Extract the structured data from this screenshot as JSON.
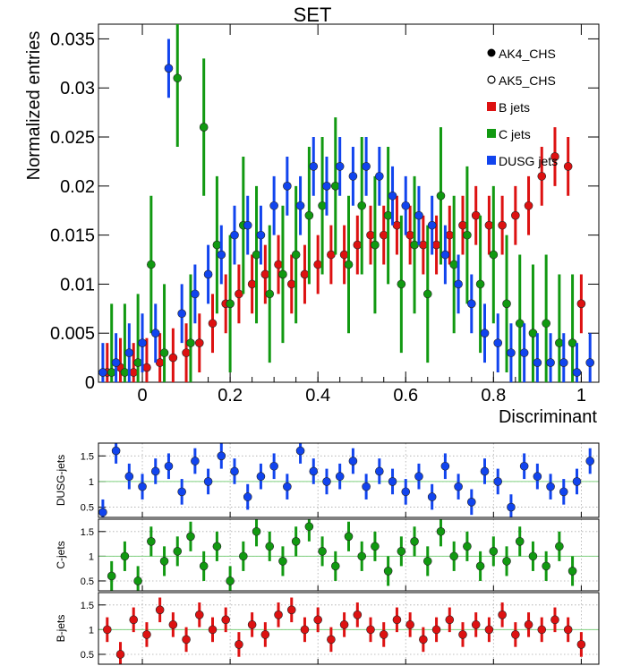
{
  "title": "SET",
  "main_xlabel": "Discriminant",
  "main_ylabel": "Normalized entries",
  "colors": {
    "b": "#dd1111",
    "c": "#119911",
    "dusg": "#1144ee",
    "black": "#000000",
    "ref": "#7fd07f"
  },
  "legend": [
    {
      "label": "AK4_CHS",
      "marker": "filled-circle",
      "color": "#000000"
    },
    {
      "label": "AK5_CHS",
      "marker": "open-circle",
      "color": "#000000"
    },
    {
      "label": "B jets",
      "marker": "square",
      "color": "#dd1111"
    },
    {
      "label": "C jets",
      "marker": "square",
      "color": "#119911"
    },
    {
      "label": "DUSG jets",
      "marker": "square",
      "color": "#1144ee"
    }
  ],
  "chart_data": [
    {
      "type": "scatter",
      "title": "SET",
      "xlabel": "Discriminant",
      "ylabel": "Normalized entries",
      "xlim": [
        -0.1,
        1.04
      ],
      "ylim": [
        0,
        0.0365
      ],
      "xticks": [
        "0",
        "0.2",
        "0.4",
        "0.6",
        "0.8",
        "1"
      ],
      "yticks": [
        "0",
        "0.005",
        "0.01",
        "0.015",
        "0.02",
        "0.025",
        "0.03",
        "0.035"
      ],
      "legend_position": "top-right",
      "series": [
        {
          "name": "B jets",
          "color": "#dd1111",
          "x": [
            -0.08,
            -0.05,
            -0.02,
            0.01,
            0.04,
            0.07,
            0.1,
            0.13,
            0.16,
            0.19,
            0.22,
            0.25,
            0.28,
            0.31,
            0.34,
            0.37,
            0.4,
            0.43,
            0.46,
            0.49,
            0.52,
            0.55,
            0.58,
            0.61,
            0.64,
            0.67,
            0.7,
            0.73,
            0.76,
            0.79,
            0.82,
            0.85,
            0.88,
            0.91,
            0.94,
            0.97,
            1.0
          ],
          "y": [
            0.001,
            0.0015,
            0.001,
            0.0015,
            0.002,
            0.0025,
            0.003,
            0.004,
            0.006,
            0.008,
            0.009,
            0.01,
            0.011,
            0.012,
            0.01,
            0.011,
            0.012,
            0.013,
            0.013,
            0.014,
            0.015,
            0.015,
            0.016,
            0.015,
            0.014,
            0.014,
            0.015,
            0.016,
            0.017,
            0.016,
            0.016,
            0.017,
            0.018,
            0.021,
            0.023,
            0.022,
            0.008
          ],
          "y_err": 0.003
        },
        {
          "name": "C jets",
          "color": "#119911",
          "x": [
            -0.07,
            -0.04,
            -0.01,
            0.02,
            0.05,
            0.08,
            0.11,
            0.14,
            0.17,
            0.2,
            0.23,
            0.26,
            0.29,
            0.32,
            0.35,
            0.38,
            0.41,
            0.44,
            0.47,
            0.5,
            0.53,
            0.56,
            0.59,
            0.62,
            0.65,
            0.68,
            0.71,
            0.74,
            0.77,
            0.8,
            0.83,
            0.86,
            0.89,
            0.92,
            0.95,
            0.98
          ],
          "y": [
            0.001,
            0.001,
            0.002,
            0.012,
            0.003,
            0.031,
            0.004,
            0.026,
            0.014,
            0.008,
            0.016,
            0.013,
            0.009,
            0.011,
            0.013,
            0.017,
            0.018,
            0.02,
            0.012,
            0.018,
            0.014,
            0.017,
            0.01,
            0.014,
            0.009,
            0.019,
            0.012,
            0.015,
            0.01,
            0.013,
            0.008,
            0.006,
            0.005,
            0.006,
            0.004,
            0.004
          ],
          "y_err": 0.007
        },
        {
          "name": "DUSG jets",
          "color": "#1144ee",
          "x": [
            -0.09,
            -0.06,
            -0.03,
            0.0,
            0.03,
            0.06,
            0.09,
            0.12,
            0.15,
            0.18,
            0.21,
            0.24,
            0.27,
            0.3,
            0.33,
            0.36,
            0.39,
            0.42,
            0.45,
            0.48,
            0.51,
            0.54,
            0.57,
            0.6,
            0.63,
            0.66,
            0.69,
            0.72,
            0.75,
            0.78,
            0.81,
            0.84,
            0.87,
            0.9,
            0.93,
            0.96,
            0.99,
            1.02
          ],
          "y": [
            0.001,
            0.002,
            0.003,
            0.004,
            0.005,
            0.032,
            0.007,
            0.009,
            0.011,
            0.013,
            0.015,
            0.016,
            0.015,
            0.018,
            0.02,
            0.018,
            0.022,
            0.02,
            0.022,
            0.021,
            0.022,
            0.021,
            0.019,
            0.018,
            0.017,
            0.016,
            0.013,
            0.01,
            0.008,
            0.005,
            0.004,
            0.003,
            0.003,
            0.002,
            0.002,
            0.002,
            0.001,
            0.002
          ],
          "y_err": 0.003
        }
      ]
    },
    {
      "type": "scatter",
      "ylabel": "DUSG-jets",
      "ylim": [
        0.3,
        1.75
      ],
      "yticks": [
        "0.5",
        "1",
        "1.5"
      ],
      "color": "#1144ee",
      "reference_line": 1,
      "x": [
        -0.09,
        -0.06,
        -0.03,
        0.0,
        0.03,
        0.06,
        0.09,
        0.12,
        0.15,
        0.18,
        0.21,
        0.24,
        0.27,
        0.3,
        0.33,
        0.36,
        0.39,
        0.42,
        0.45,
        0.48,
        0.51,
        0.54,
        0.57,
        0.6,
        0.63,
        0.66,
        0.69,
        0.72,
        0.75,
        0.78,
        0.81,
        0.84,
        0.87,
        0.9,
        0.93,
        0.96,
        0.99,
        1.02
      ],
      "y": [
        0.4,
        1.6,
        1.1,
        0.9,
        1.2,
        1.3,
        0.8,
        1.4,
        1.0,
        1.5,
        1.2,
        0.7,
        1.1,
        1.3,
        0.9,
        1.6,
        1.2,
        1.0,
        1.1,
        1.4,
        0.9,
        1.2,
        1.0,
        0.8,
        1.1,
        0.7,
        1.3,
        0.9,
        0.6,
        1.2,
        1.0,
        0.5,
        1.3,
        1.1,
        0.9,
        0.8,
        1.0,
        1.4
      ],
      "y_err": 0.25
    },
    {
      "type": "scatter",
      "ylabel": "C-jets",
      "ylim": [
        0.3,
        1.75
      ],
      "yticks": [
        "0.5",
        "1",
        "1.5"
      ],
      "color": "#119911",
      "reference_line": 1,
      "x": [
        -0.07,
        -0.04,
        -0.01,
        0.02,
        0.05,
        0.08,
        0.11,
        0.14,
        0.17,
        0.2,
        0.23,
        0.26,
        0.29,
        0.32,
        0.35,
        0.38,
        0.41,
        0.44,
        0.47,
        0.5,
        0.53,
        0.56,
        0.59,
        0.62,
        0.65,
        0.68,
        0.71,
        0.74,
        0.77,
        0.8,
        0.83,
        0.86,
        0.89,
        0.92,
        0.95,
        0.98
      ],
      "y": [
        0.6,
        1.0,
        0.5,
        1.3,
        0.9,
        1.1,
        1.4,
        0.8,
        1.2,
        0.5,
        1.0,
        1.5,
        1.2,
        0.9,
        1.3,
        1.6,
        1.1,
        0.8,
        1.4,
        1.0,
        1.2,
        0.7,
        1.1,
        1.3,
        0.9,
        1.5,
        1.0,
        1.2,
        0.8,
        1.1,
        0.9,
        1.3,
        1.0,
        0.8,
        1.2,
        0.7
      ],
      "y_err": 0.3
    },
    {
      "type": "scatter",
      "ylabel": "B-jets",
      "ylim": [
        0.3,
        1.75
      ],
      "yticks": [
        "0.5",
        "1",
        "1.5"
      ],
      "color": "#dd1111",
      "reference_line": 1,
      "x": [
        -0.08,
        -0.05,
        -0.02,
        0.01,
        0.04,
        0.07,
        0.1,
        0.13,
        0.16,
        0.19,
        0.22,
        0.25,
        0.28,
        0.31,
        0.34,
        0.37,
        0.4,
        0.43,
        0.46,
        0.49,
        0.52,
        0.55,
        0.58,
        0.61,
        0.64,
        0.67,
        0.7,
        0.73,
        0.76,
        0.79,
        0.82,
        0.85,
        0.88,
        0.91,
        0.94,
        0.97,
        1.0
      ],
      "y": [
        1.0,
        0.5,
        1.2,
        0.9,
        1.4,
        1.1,
        0.8,
        1.3,
        1.0,
        1.2,
        0.7,
        1.1,
        0.9,
        1.3,
        1.4,
        1.0,
        1.2,
        0.8,
        1.1,
        1.3,
        1.0,
        0.9,
        1.2,
        1.1,
        0.8,
        1.0,
        1.2,
        0.9,
        1.1,
        1.0,
        1.3,
        0.9,
        1.1,
        1.0,
        1.2,
        1.0,
        0.7
      ],
      "y_err": 0.25
    }
  ]
}
